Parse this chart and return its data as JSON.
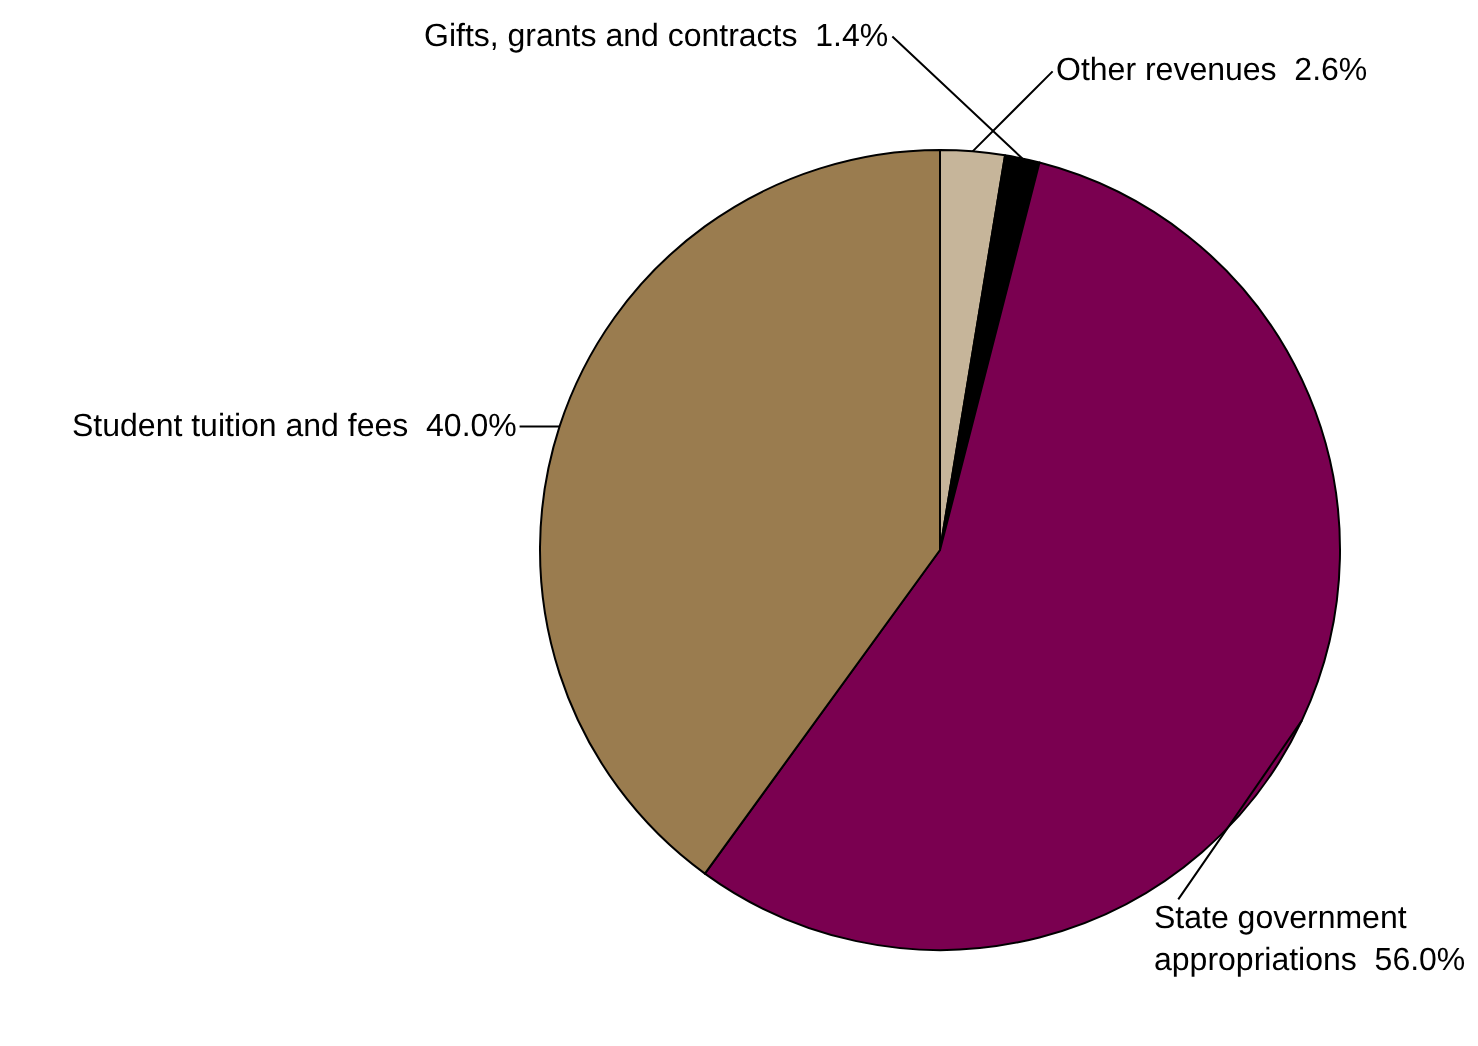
{
  "chart_data": {
    "type": "pie",
    "categories": [
      "Other revenues",
      "Gifts, grants and contracts",
      "State government appropriations",
      "Student tuition and fees"
    ],
    "values": [
      2.6,
      1.4,
      56.0,
      40.0
    ],
    "value_labels": [
      "2.6%",
      "1.4%",
      "56.0%",
      "40.0%"
    ],
    "colors": [
      "#c6b59a",
      "#000000",
      "#7a0050",
      "#9a7c4f"
    ],
    "legend": false
  }
}
